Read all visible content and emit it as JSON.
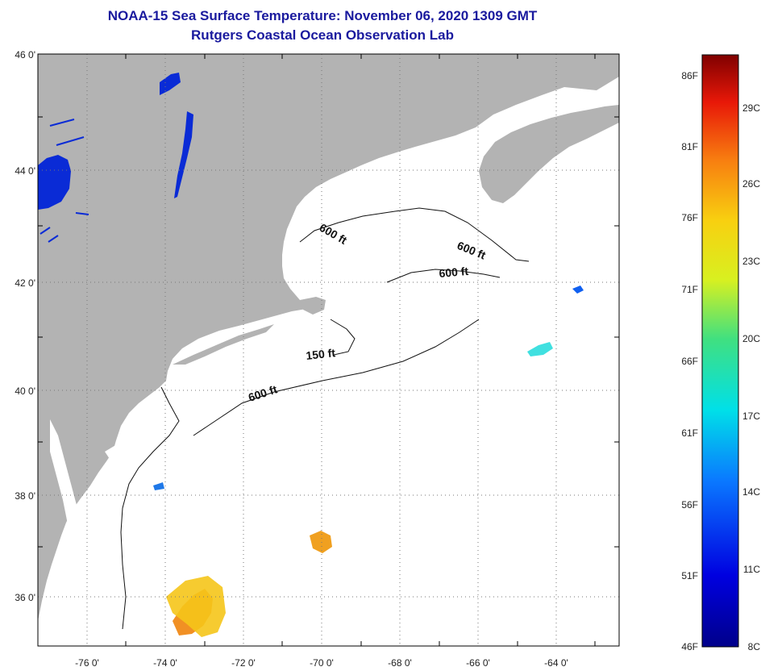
{
  "header": {
    "title": "NOAA-15 Sea Surface Temperature:  November 06, 2020 1309 GMT",
    "subtitle": "Rutgers Coastal Ocean Observation Lab"
  },
  "map": {
    "lat_labels": [
      "46 0'",
      "44 0'",
      "42 0'",
      "40 0'",
      "38 0'",
      "36 0'"
    ],
    "lon_labels": [
      "-76 0'",
      "-74 0'",
      "-72 0'",
      "-70 0'",
      "-68 0'",
      "-66 0'",
      "-64 0'"
    ],
    "isobath_labels": [
      "600 ft",
      "600 ft",
      "600 ft",
      "150 ft",
      "600 ft"
    ],
    "colors": {
      "land": "#b3b3b3",
      "ocean": "#ffffff",
      "lakes": "#0a2bd6",
      "grid": "#777777"
    }
  },
  "colorbar": {
    "fahrenheit": [
      "86F",
      "81F",
      "76F",
      "71F",
      "66F",
      "61F",
      "56F",
      "51F",
      "46F"
    ],
    "celsius": [
      "29C",
      "26C",
      "23C",
      "20C",
      "17C",
      "14C",
      "11C",
      "8C"
    ],
    "range_c": [
      8,
      30
    ]
  }
}
